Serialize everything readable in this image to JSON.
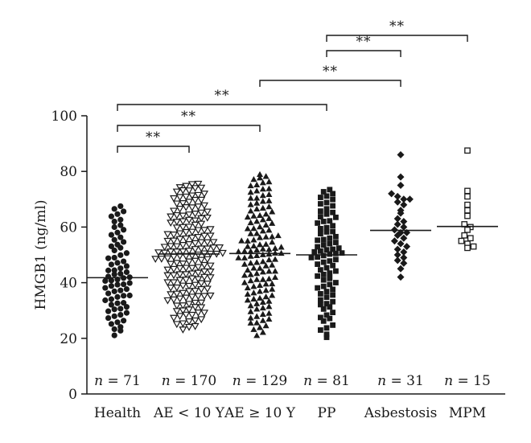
{
  "chart_data": {
    "type": "scatter",
    "ylabel": "HMGB1 (ng/ml)",
    "ylim": [
      0,
      100
    ],
    "yticks": [
      0,
      20,
      40,
      60,
      80,
      100
    ],
    "grid": false,
    "categories": [
      "Health",
      "AE < 10 Y",
      "AE ≥ 10 Y",
      "PP",
      "Asbestosis",
      "MPM"
    ],
    "n_labels": [
      "n = 71",
      "n = 170",
      "n = 129",
      "n = 81",
      "n = 31",
      "n = 15"
    ],
    "markers": [
      "filled-circle",
      "open-triangle-down",
      "filled-triangle-up",
      "filled-square",
      "filled-diamond",
      "open-square"
    ],
    "medians": [
      41.8,
      50.3,
      50.5,
      50.0,
      58.8,
      60.2
    ],
    "n": [
      71,
      170,
      129,
      81,
      31,
      15
    ],
    "ranges": [
      [
        20.5,
        68
      ],
      [
        22.5,
        76
      ],
      [
        20.5,
        79
      ],
      [
        19,
        74
      ],
      [
        42,
        86
      ],
      [
        52.5,
        87.5
      ]
    ],
    "group_values": {
      "Asbestosis": [
        86,
        78,
        75,
        72,
        71,
        70,
        70,
        69,
        68,
        66,
        65,
        63,
        62,
        61,
        60,
        59,
        58,
        58,
        57,
        56,
        55,
        54,
        53,
        52,
        51,
        50,
        49,
        48,
        47,
        45,
        42
      ],
      "MPM": [
        87.5,
        73,
        71,
        68,
        66,
        64,
        61,
        60,
        59,
        57,
        56,
        55,
        54,
        53,
        52.5
      ]
    },
    "significance": [
      {
        "from": "Health",
        "to": "AE < 10 Y",
        "label": "**"
      },
      {
        "from": "Health",
        "to": "AE ≥ 10 Y",
        "label": "**"
      },
      {
        "from": "Health",
        "to": "PP",
        "label": "**"
      },
      {
        "from": "AE ≥ 10 Y",
        "to": "Asbestosis",
        "label": "**"
      },
      {
        "from": "PP",
        "to": "Asbestosis",
        "label": "**"
      },
      {
        "from": "PP",
        "to": "MPM",
        "label": "**"
      }
    ]
  }
}
